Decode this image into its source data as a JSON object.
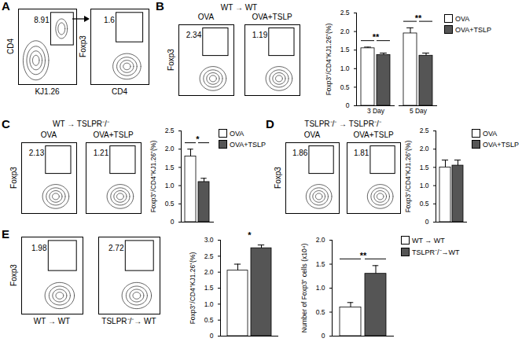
{
  "panels": [
    {
      "letter": "A",
      "plots": [
        {
          "y_label": "CD4",
          "x_label": "KJ1.26",
          "gate_value": 8.91
        },
        {
          "y_label": "Foxp3",
          "x_label": "CD4",
          "gate_value": 1.6
        }
      ]
    },
    {
      "letter": "B",
      "title": "WT → WT",
      "y_label": "Foxp3",
      "plots": [
        {
          "caption": "OVA",
          "gate_value": 2.34
        },
        {
          "caption": "OVA+TSLP",
          "gate_value": 1.19
        }
      ]
    },
    {
      "letter": "C",
      "title": "WT → TSLPR⁻/⁻",
      "y_label": "Foxp3",
      "plots": [
        {
          "caption": "OVA",
          "gate_value": 2.13
        },
        {
          "caption": "OVA+TSLP",
          "gate_value": 1.21
        }
      ]
    },
    {
      "letter": "D",
      "title": "TSLPR⁻/⁻ → TSLPR⁻/⁻",
      "y_label": "Foxp3",
      "plots": [
        {
          "caption": "OVA",
          "gate_value": 1.86
        },
        {
          "caption": "OVA+TSLP",
          "gate_value": 1.81
        }
      ]
    },
    {
      "letter": "E",
      "y_label": "Foxp3",
      "plots": [
        {
          "x_label": "WT → WT",
          "gate_value": 1.98
        },
        {
          "x_label": "TSLPR⁻/⁻→ WT",
          "gate_value": 2.72
        }
      ]
    }
  ],
  "chart_data": [
    {
      "type": "bar",
      "categories": [
        "3 Day",
        "5 Day"
      ],
      "series": [
        {
          "name": "OVA",
          "color": "#ffffff",
          "values": [
            1.55,
            1.95
          ],
          "errors": [
            0.03,
            0.15
          ]
        },
        {
          "name": "OVA+TSLP",
          "color": "#555555",
          "values": [
            1.37,
            1.35
          ],
          "errors": [
            0.05,
            0.07
          ]
        }
      ],
      "ylabel": "Foxp3⁺/CD4⁺KJ1.26⁺(%)",
      "ylim": [
        0,
        2.5
      ],
      "yticks": [
        0,
        0.5,
        {
          "value": 1,
          "label": "1.0"
        },
        1.5,
        {
          "value": 2,
          "label": "2.0"
        },
        2.5
      ],
      "significance": [
        {
          "category": "3 Day",
          "label": "**"
        },
        {
          "category": "5 Day",
          "label": "**"
        }
      ],
      "legend": "top-right"
    },
    {
      "type": "bar",
      "series": [
        {
          "name": "OVA",
          "color": "#ffffff",
          "values": [
            1.8
          ],
          "errors": [
            0.2
          ]
        },
        {
          "name": "OVA+TSLP",
          "color": "#555555",
          "values": [
            1.1
          ],
          "errors": [
            0.1
          ]
        }
      ],
      "ylabel": "Foxp3⁺/CD4⁺KJ1.26⁺(%)",
      "ylim": [
        0,
        2.5
      ],
      "yticks": [
        0,
        0.5,
        {
          "value": 1,
          "label": "1.0"
        },
        1.5,
        {
          "value": 2,
          "label": "2.0"
        },
        2.5
      ],
      "significance": [
        {
          "label": "*"
        }
      ],
      "legend": "top-right"
    },
    {
      "type": "bar",
      "series": [
        {
          "name": "OVA",
          "color": "#ffffff",
          "values": [
            1.5
          ],
          "errors": [
            0.2
          ]
        },
        {
          "name": "OVA+TSLP",
          "color": "#555555",
          "values": [
            1.55
          ],
          "errors": [
            0.15
          ]
        }
      ],
      "ylabel": "Foxp3⁺/CD4⁺KJ1.26⁺(%)",
      "ylim": [
        0,
        2.5
      ],
      "yticks": [
        0,
        0.5,
        {
          "value": 1,
          "label": "1.0"
        },
        1.5,
        {
          "value": 2,
          "label": "2.0"
        },
        2.5
      ],
      "legend": "top-right"
    },
    {
      "type": "bar",
      "series": [
        {
          "color": "#ffffff",
          "values": [
            2.05
          ],
          "errors": [
            0.2
          ]
        },
        {
          "color": "#555555",
          "values": [
            2.75
          ],
          "errors": [
            0.1
          ]
        }
      ],
      "ylabel": "Foxp3⁺/CD4⁺KJ1.26⁺(%)",
      "ylim": [
        0,
        3
      ],
      "yticks": [
        0,
        0.5,
        {
          "value": 1,
          "label": "1.0"
        },
        1.5,
        {
          "value": 2,
          "label": "2.0"
        },
        2.5,
        {
          "value": 3,
          "label": "3.0"
        }
      ],
      "significance": [
        {
          "label": "*"
        }
      ]
    },
    {
      "type": "bar",
      "series": [
        {
          "name": "WT → WT",
          "color": "#ffffff",
          "values": [
            0.6
          ],
          "errors": [
            0.1
          ]
        },
        {
          "name": "TSLPR⁻/⁻→WT",
          "color": "#555555",
          "values": [
            1.3
          ],
          "errors": [
            0.17
          ]
        }
      ],
      "ylabel": "Number of Foxp3⁺ cells (x10⁴)",
      "ylim": [
        0,
        2
      ],
      "yticks": [
        0,
        0.5,
        {
          "value": 1,
          "label": "1.0"
        },
        1.5,
        {
          "value": 2,
          "label": "2.0"
        }
      ],
      "significance": [
        {
          "label": "**"
        }
      ],
      "legend": "top-right"
    }
  ]
}
